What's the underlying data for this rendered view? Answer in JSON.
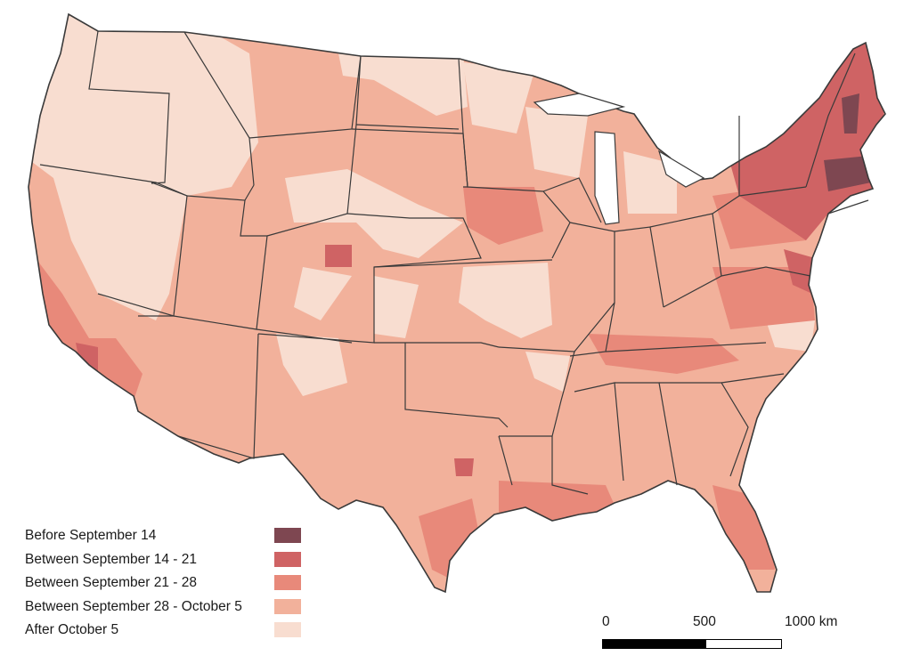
{
  "legend": {
    "items": [
      {
        "label": "Before September 14",
        "color": "#7e4751"
      },
      {
        "label": "Between September 14 - 21",
        "color": "#cf6364"
      },
      {
        "label": "Between September 21 - 28",
        "color": "#e8897a"
      },
      {
        "label": "Between September 28 - October 5",
        "color": "#f2b19b"
      },
      {
        "label": "After October 5",
        "color": "#f8ddd0"
      }
    ]
  },
  "scale_bar": {
    "labels": [
      "0",
      "500",
      "1000 km"
    ]
  },
  "colors": {
    "border": "#3a3a3a",
    "background": "#ffffff"
  }
}
